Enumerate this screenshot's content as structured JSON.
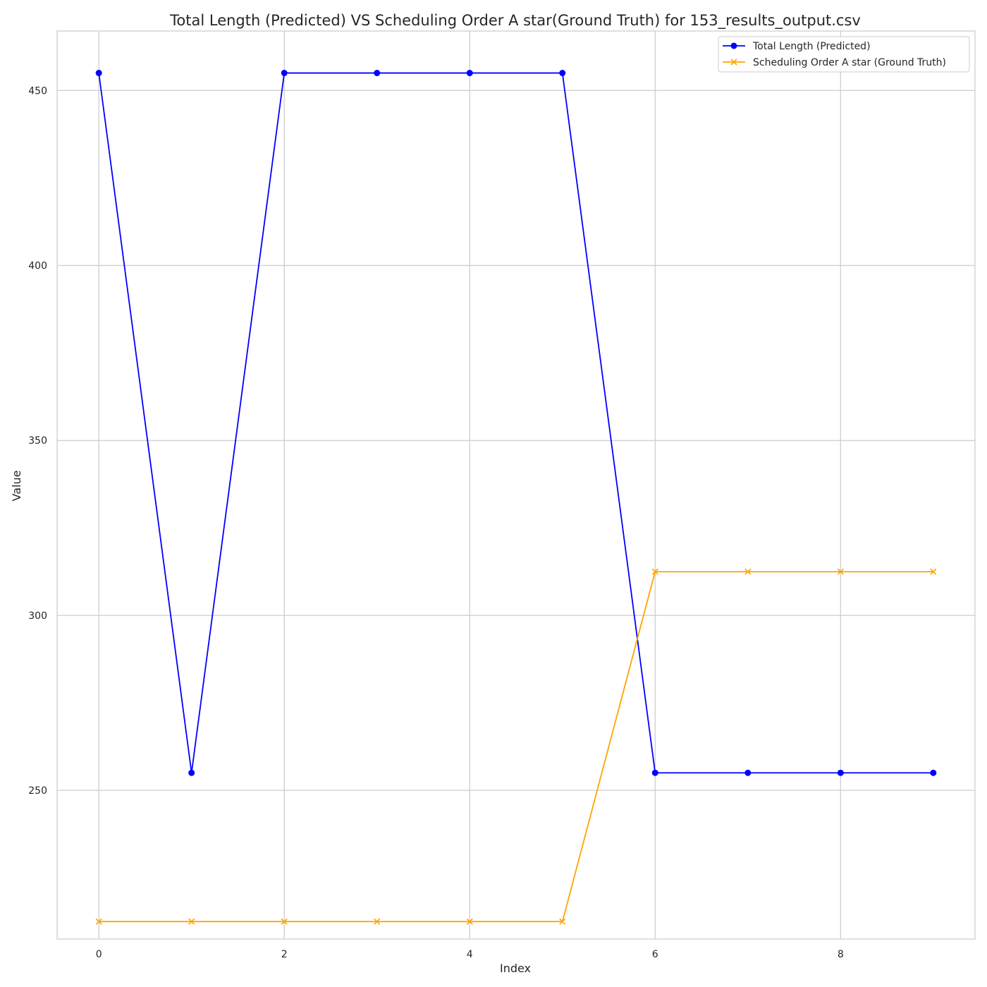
{
  "chart_data": {
    "type": "line",
    "title": "Total Length (Predicted) VS Scheduling Order A star(Ground Truth) for 153_results_output.csv",
    "xlabel": "Index",
    "ylabel": "Value",
    "x": [
      0,
      1,
      2,
      3,
      4,
      5,
      6,
      7,
      8,
      9
    ],
    "xlim": [
      -0.45,
      9.45
    ],
    "ylim": [
      207.5,
      467
    ],
    "xticks": [
      0,
      2,
      4,
      6,
      8
    ],
    "yticks": [
      250,
      300,
      350,
      400,
      450
    ],
    "grid": true,
    "legend_position": "top-right",
    "series": [
      {
        "name": "Total Length (Predicted)",
        "color": "#0000ff",
        "marker": "circle",
        "values": [
          455,
          255,
          455,
          455,
          455,
          455,
          255,
          255,
          255,
          255
        ]
      },
      {
        "name": "Scheduling Order A star (Ground Truth)",
        "color": "#ffa500",
        "marker": "x",
        "values": [
          212.5,
          212.5,
          212.5,
          212.5,
          212.5,
          212.5,
          312.5,
          312.5,
          312.5,
          312.5
        ]
      }
    ]
  }
}
